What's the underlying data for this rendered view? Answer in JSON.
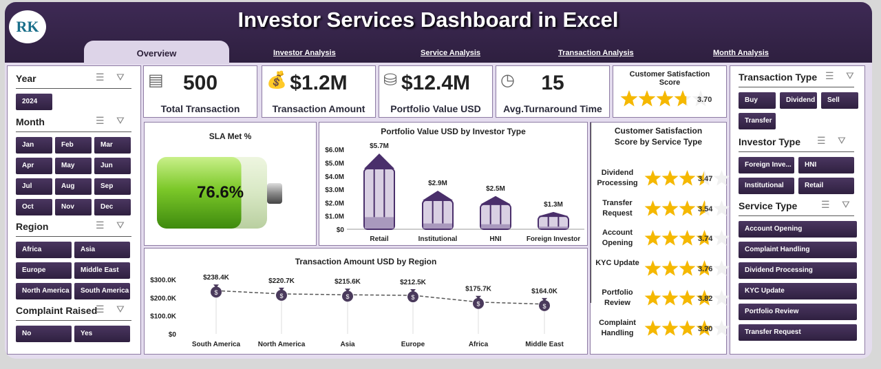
{
  "header": {
    "title": "Investor Services Dashboard in Excel",
    "logo_text": "RK"
  },
  "tabs": [
    "Overview",
    "Investor Analysis",
    "Service Analysis",
    "Transaction Analysis",
    "Month Analysis"
  ],
  "left_slicers": {
    "year": {
      "label": "Year",
      "items": [
        "2024"
      ]
    },
    "month": {
      "label": "Month",
      "items": [
        "Jan",
        "Feb",
        "Mar",
        "Apr",
        "May",
        "Jun",
        "Jul",
        "Aug",
        "Sep",
        "Oct",
        "Nov",
        "Dec"
      ]
    },
    "region": {
      "label": "Region",
      "items": [
        "Africa",
        "Asia",
        "Europe",
        "Middle East",
        "North America",
        "South America"
      ]
    },
    "complaint": {
      "label": "Complaint Raised",
      "items": [
        "No",
        "Yes"
      ]
    }
  },
  "right_slicers": {
    "transaction_type": {
      "label": "Transaction Type",
      "items": [
        "Buy",
        "Dividend",
        "Sell",
        "Transfer"
      ]
    },
    "investor_type": {
      "label": "Investor Type",
      "items": [
        "Foreign Inve...",
        "HNI",
        "Institutional",
        "Retail"
      ]
    },
    "service_type": {
      "label": "Service Type",
      "items": [
        "Account Opening",
        "Complaint Handling",
        "Dividend Processing",
        "KYC Update",
        "Portfolio Review",
        "Transfer Request"
      ]
    }
  },
  "kpis": [
    {
      "value": "500",
      "label": "Total Transaction",
      "icon": "clipboard-icon"
    },
    {
      "value": "$1.2M",
      "label": "Transaction Amount",
      "icon": "money-bag-icon"
    },
    {
      "value": "$12.4M",
      "label": "Portfolio Value USD",
      "icon": "coins-icon"
    },
    {
      "value": "15",
      "label": "Avg.Turnaround Time",
      "icon": "clock-icon"
    }
  ],
  "csat": {
    "title": "Customer Satisfaction Score",
    "value": "3.70",
    "score": 3.7,
    "max": 5
  },
  "sla": {
    "title": "SLA Met %",
    "value": "76.6%",
    "percent": 76.6
  },
  "colors": {
    "header": "#3e2a55",
    "button": "#3b2a4c",
    "star": "#f5b800",
    "bar_fill": "#d9d0e3",
    "bar_edge": "#4a2f6b"
  },
  "chart_data": [
    {
      "type": "bar",
      "title": "Portfolio Value USD by Investor Type",
      "categories": [
        "Retail",
        "Institutional",
        "HNI",
        "Foreign Investor"
      ],
      "values": [
        5.7,
        2.9,
        2.5,
        1.3
      ],
      "data_labels": [
        "$5.7M",
        "$2.9M",
        "$2.5M",
        "$1.3M"
      ],
      "unit": "$M",
      "ylim": [
        0,
        6
      ],
      "yticks": [
        "$0",
        "$1.0M",
        "$2.0M",
        "$3.0M",
        "$4.0M",
        "$5.0M",
        "$6.0M"
      ]
    },
    {
      "type": "line",
      "title": "Transaction Amount USD by Region",
      "categories": [
        "South America",
        "North America",
        "Asia",
        "Europe",
        "Africa",
        "Middle East"
      ],
      "values": [
        238.4,
        220.7,
        215.6,
        212.5,
        175.7,
        164.0
      ],
      "data_labels": [
        "$238.4K",
        "$220.7K",
        "$215.6K",
        "$212.5K",
        "$175.7K",
        "$164.0K"
      ],
      "unit": "$K",
      "ylim": [
        0,
        300
      ],
      "yticks": [
        "$0",
        "$100.0K",
        "$200.0K",
        "$300.0K"
      ]
    },
    {
      "type": "bar",
      "title": "Customer Satisfaction Score by Service Type",
      "categories": [
        "Dividend Processing",
        "Transfer Request",
        "Account Opening",
        "KYC Update",
        "Portfolio Review",
        "Complaint Handling"
      ],
      "values": [
        3.47,
        3.54,
        3.74,
        3.76,
        3.82,
        3.9
      ],
      "data_labels": [
        "3.47",
        "3.54",
        "3.74",
        "3.76",
        "3.82",
        "3.90"
      ],
      "xlim": [
        0,
        5
      ]
    }
  ]
}
